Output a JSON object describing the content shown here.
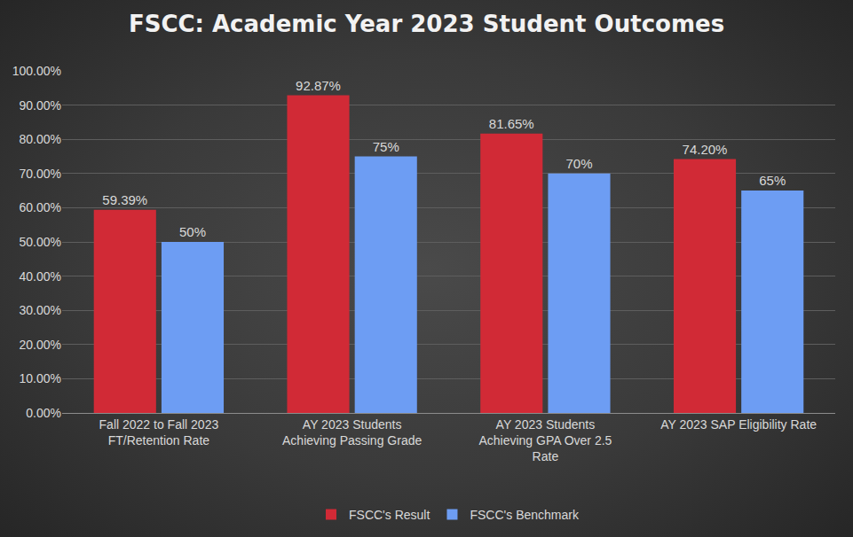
{
  "chart_data": {
    "type": "bar",
    "title": "FSCC: Academic Year 2023 Student Outcomes",
    "categories": [
      "Fall 2022 to Fall 2023 FT/Retention Rate",
      "AY 2023 Students Achieving Passing Grade",
      "AY 2023 Students Achieving GPA Over 2.5 Rate",
      "AY 2023 SAP Eligibility Rate"
    ],
    "series": [
      {
        "name": "FSCC's Result",
        "color": "#d12a36",
        "values": [
          59.39,
          92.87,
          81.65,
          74.2
        ],
        "value_labels": [
          "59.39%",
          "92.87%",
          "81.65%",
          "74.20%"
        ]
      },
      {
        "name": "FSCC's Benchmark",
        "color": "#6d9df3",
        "values": [
          50,
          75,
          70,
          65
        ],
        "value_labels": [
          "50%",
          "75%",
          "70%",
          "65%"
        ]
      }
    ],
    "ylim": [
      0,
      100
    ],
    "yticks": [
      {
        "value": 0,
        "label": "0.00%"
      },
      {
        "value": 10,
        "label": "10.00%"
      },
      {
        "value": 20,
        "label": "20.00%"
      },
      {
        "value": 30,
        "label": "30.00%"
      },
      {
        "value": 40,
        "label": "40.00%"
      },
      {
        "value": 50,
        "label": "50.00%"
      },
      {
        "value": 60,
        "label": "60.00%"
      },
      {
        "value": 70,
        "label": "70.00%"
      },
      {
        "value": 80,
        "label": "80.00%"
      },
      {
        "value": 90,
        "label": "90.00%"
      },
      {
        "value": 100,
        "label": "100.00%"
      }
    ],
    "grid": true,
    "data_labels": true,
    "legend": "bottom"
  }
}
